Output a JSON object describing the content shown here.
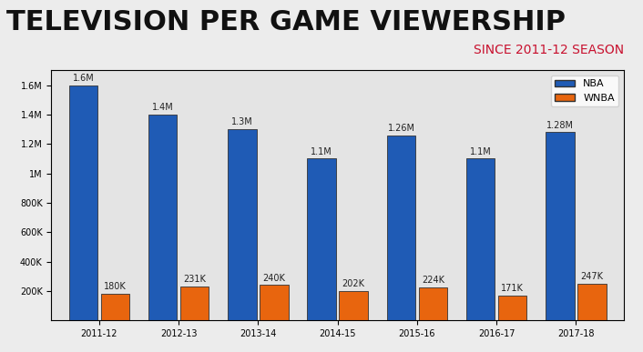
{
  "chart_data": {
    "type": "bar",
    "title": "TELEVISION PER GAME VIEWERSHIP",
    "subtitle": "SINCE 2011-12 SEASON",
    "categories": [
      "2011-12",
      "2012-13",
      "2013-14",
      "2014-15",
      "2015-16",
      "2016-17",
      "2017-18"
    ],
    "series": [
      {
        "name": "NBA",
        "color": "#1f5bb5",
        "values": [
          1600000,
          1400000,
          1300000,
          1100000,
          1260000,
          1100000,
          1280000
        ],
        "value_labels": [
          "1.6M",
          "1.4M",
          "1.3M",
          "1.1M",
          "1.26M",
          "1.1M",
          "1.28M"
        ]
      },
      {
        "name": "WNBA",
        "color": "#e8650e",
        "values": [
          180000,
          231000,
          240000,
          202000,
          224000,
          171000,
          247000
        ],
        "value_labels": [
          "180K",
          "231K",
          "240K",
          "202K",
          "224K",
          "171K",
          "247K"
        ]
      }
    ],
    "ylim": [
      0,
      1700000
    ],
    "yticks": [
      {
        "value": 200000,
        "label": "200K"
      },
      {
        "value": 400000,
        "label": "400K"
      },
      {
        "value": 600000,
        "label": "600K"
      },
      {
        "value": 800000,
        "label": "800K"
      },
      {
        "value": 1000000,
        "label": "1M"
      },
      {
        "value": 1200000,
        "label": "1.2M"
      },
      {
        "value": 1400000,
        "label": "1.4M"
      },
      {
        "value": 1600000,
        "label": "1.6M"
      }
    ],
    "data_labels": true,
    "legend": "upper right",
    "grid": false
  }
}
